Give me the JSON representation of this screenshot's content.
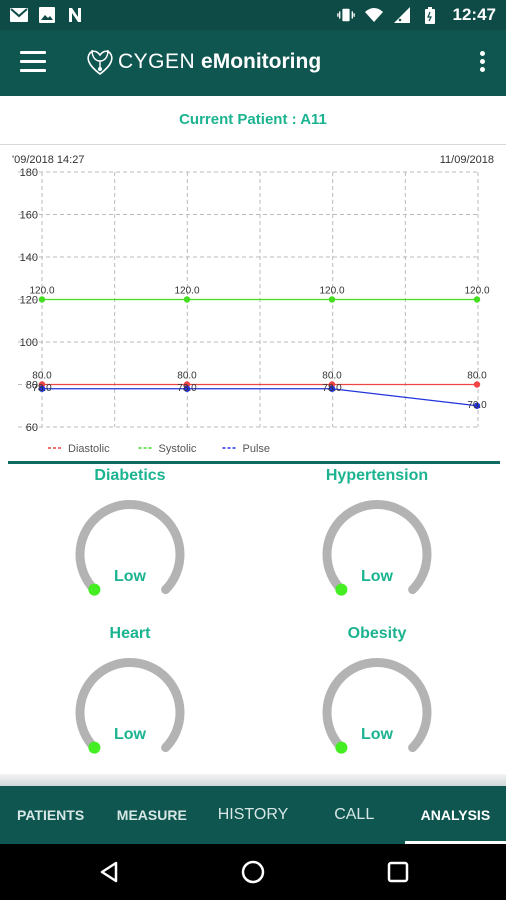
{
  "status_bar": {
    "time": "12:47",
    "left_icons": [
      "gmail-icon",
      "image-icon",
      "n-icon"
    ],
    "right_icons": [
      "vibrate-icon",
      "wifi-icon",
      "signal-icon",
      "battery-icon"
    ]
  },
  "app_bar": {
    "brand_prefix": "CYGEN",
    "brand_suffix": " eMonitoring"
  },
  "patient": {
    "label": "Current Patient : A11"
  },
  "chart_data": {
    "type": "line",
    "date_left": "'09/2018 14:27",
    "date_right": "11/09/2018",
    "x": [
      1,
      2,
      3,
      4
    ],
    "ylim": [
      60,
      180
    ],
    "yticks": [
      "60",
      "80",
      "100",
      "120",
      "140",
      "160",
      "180"
    ],
    "grid": true,
    "legend_position": "bottom-left",
    "series": [
      {
        "name": "Diastolic",
        "color": "#ee4444",
        "values": [
          80.0,
          80.0,
          80.0,
          80.0
        ],
        "labels": [
          "80.0",
          "80.0",
          "80.0",
          "80.0"
        ]
      },
      {
        "name": "Systolic",
        "color": "#44dd22",
        "values": [
          120.0,
          120.0,
          120.0,
          120.0
        ],
        "labels": [
          "120.0",
          "120.0",
          "120.0",
          "120.0"
        ]
      },
      {
        "name": "Pulse",
        "color": "#2233dd",
        "values": [
          78.0,
          78.0,
          78.0,
          70.0
        ],
        "labels": [
          "78.0",
          "78.0",
          "78.0",
          "70.0"
        ]
      }
    ]
  },
  "gauges": [
    {
      "title": "Diabetics",
      "value": "Low"
    },
    {
      "title": "Hypertension",
      "value": "Low"
    },
    {
      "title": "Heart",
      "value": "Low"
    },
    {
      "title": "Obesity",
      "value": "Low"
    }
  ],
  "tabs": [
    {
      "label": "PATIENTS"
    },
    {
      "label": "MEASURE"
    },
    {
      "label": "HISTORY"
    },
    {
      "label": "CALL"
    },
    {
      "label": "ANALYSIS"
    }
  ],
  "colors": {
    "primary": "#0f5651",
    "accent": "#1bb390",
    "gauge_track": "#b3b3b3",
    "gauge_indicator": "#44ee22"
  }
}
